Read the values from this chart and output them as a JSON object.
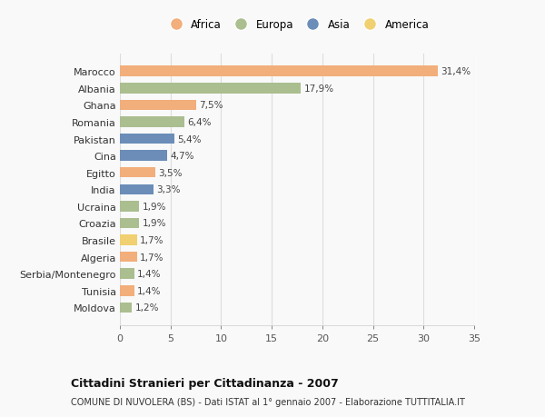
{
  "countries": [
    "Marocco",
    "Albania",
    "Ghana",
    "Romania",
    "Pakistan",
    "Cina",
    "Egitto",
    "India",
    "Ucraina",
    "Croazia",
    "Brasile",
    "Algeria",
    "Serbia/Montenegro",
    "Tunisia",
    "Moldova"
  ],
  "values": [
    31.4,
    17.9,
    7.5,
    6.4,
    5.4,
    4.7,
    3.5,
    3.3,
    1.9,
    1.9,
    1.7,
    1.7,
    1.4,
    1.4,
    1.2
  ],
  "labels": [
    "31,4%",
    "17,9%",
    "7,5%",
    "6,4%",
    "5,4%",
    "4,7%",
    "3,5%",
    "3,3%",
    "1,9%",
    "1,9%",
    "1,7%",
    "1,7%",
    "1,4%",
    "1,4%",
    "1,2%"
  ],
  "continents": [
    "Africa",
    "Europa",
    "Africa",
    "Europa",
    "Asia",
    "Asia",
    "Africa",
    "Asia",
    "Europa",
    "Europa",
    "America",
    "Africa",
    "Europa",
    "Africa",
    "Europa"
  ],
  "colors": {
    "Africa": "#F2AE7B",
    "Europa": "#ABBE90",
    "Asia": "#6B8DB8",
    "America": "#F0D070"
  },
  "legend_order": [
    "Africa",
    "Europa",
    "Asia",
    "America"
  ],
  "xlim": [
    0,
    35
  ],
  "xticks": [
    0,
    5,
    10,
    15,
    20,
    25,
    30,
    35
  ],
  "title": "Cittadini Stranieri per Cittadinanza - 2007",
  "subtitle": "COMUNE DI NUVOLERA (BS) - Dati ISTAT al 1° gennaio 2007 - Elaborazione TUTTITALIA.IT",
  "background_color": "#f9f9f9",
  "grid_color": "#dddddd",
  "bar_height": 0.62
}
